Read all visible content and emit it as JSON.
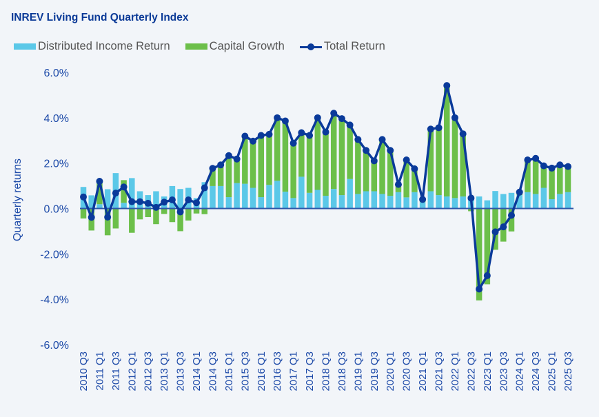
{
  "chart_data": {
    "type": "bar",
    "title": "INREV Living Fund Quarterly Index",
    "xlabel": "",
    "ylabel": "Quarterly returns",
    "ylim": [
      -6.0,
      6.0
    ],
    "yticks": [
      "6.0%",
      "4.0%",
      "2.0%",
      "0.0%",
      "-2.0%",
      "-4.0%",
      "-6.0%"
    ],
    "ytick_values": [
      6,
      4,
      2,
      0,
      -2,
      -4,
      -6
    ],
    "grid": false,
    "legend_position": "top-left",
    "colors": {
      "income": "#5bc8e8",
      "capital": "#6cbf4a",
      "total": "#0a3a9a",
      "axis_text": "#1d4aa8"
    },
    "categories": [
      "2010 Q3",
      "2010 Q4",
      "2011 Q1",
      "2011 Q2",
      "2011 Q3",
      "2011 Q4",
      "2012 Q1",
      "2012 Q2",
      "2012 Q3",
      "2012 Q4",
      "2013 Q1",
      "2013 Q2",
      "2013 Q3",
      "2013 Q4",
      "2014 Q1",
      "2014 Q2",
      "2014 Q3",
      "2014 Q4",
      "2015 Q1",
      "2015 Q2",
      "2015 Q3",
      "2015 Q4",
      "2016 Q1",
      "2016 Q2",
      "2016 Q3",
      "2016 Q4",
      "2017 Q1",
      "2017 Q2",
      "2017 Q3",
      "2017 Q4",
      "2018 Q1",
      "2018 Q2",
      "2018 Q3",
      "2018 Q4",
      "2019 Q1",
      "2019 Q2",
      "2019 Q3",
      "2019 Q4",
      "2020 Q1",
      "2020 Q2",
      "2020 Q3",
      "2020 Q4",
      "2021 Q1",
      "2021 Q2",
      "2021 Q3",
      "2021 Q4",
      "2022 Q1",
      "2022 Q2",
      "2022 Q3",
      "2022 Q4",
      "2023 Q1",
      "2023 Q2",
      "2023 Q3",
      "2023 Q4",
      "2024 Q1",
      "2024 Q2",
      "2024 Q3",
      "2024 Q4",
      "2025 Q1",
      "2025 Q2",
      "2025 Q3"
    ],
    "tick_labels_every": 2,
    "series": [
      {
        "name": "Distributed Income Return",
        "type": "bar",
        "values": [
          0.95,
          0.58,
          0.19,
          0.85,
          1.56,
          0.25,
          1.34,
          0.76,
          0.59,
          0.76,
          0.53,
          0.99,
          0.86,
          0.91,
          0.46,
          1.16,
          0.99,
          0.99,
          0.5,
          1.12,
          1.09,
          0.91,
          0.5,
          1.04,
          1.22,
          0.74,
          0.46,
          1.4,
          0.69,
          0.82,
          0.56,
          0.86,
          0.59,
          1.3,
          0.64,
          0.76,
          0.76,
          0.64,
          0.56,
          0.72,
          0.49,
          0.72,
          0.28,
          0.76,
          0.59,
          0.53,
          0.46,
          0.53,
          0.53,
          0.53,
          0.36,
          0.77,
          0.64,
          0.69,
          0.59,
          0.72,
          0.64,
          0.91,
          0.41,
          0.64,
          0.72
        ]
      },
      {
        "name": "Capital Growth",
        "type": "bar",
        "values": [
          -0.44,
          -0.97,
          1.0,
          -1.18,
          -0.88,
          1.0,
          -1.07,
          -0.48,
          -0.38,
          -0.69,
          -0.24,
          -0.6,
          -1.0,
          -0.53,
          -0.22,
          -0.25,
          0.78,
          0.93,
          1.83,
          1.06,
          2.1,
          2.06,
          2.72,
          2.23,
          2.78,
          3.12,
          2.42,
          1.94,
          2.53,
          3.18,
          2.81,
          3.34,
          3.37,
          2.38,
          2.4,
          1.8,
          1.34,
          2.4,
          2.0,
          0.34,
          1.65,
          1.03,
          0.12,
          2.74,
          2.97,
          4.89,
          3.54,
          2.76,
          -0.12,
          -4.05,
          -3.34,
          -1.82,
          -1.46,
          -1.01,
          0.13,
          1.42,
          1.57,
          0.97,
          1.37,
          1.28,
          1.13
        ]
      },
      {
        "name": "Total Return",
        "type": "line",
        "values": [
          0.51,
          -0.39,
          1.2,
          -0.38,
          0.68,
          0.95,
          0.3,
          0.3,
          0.23,
          0.05,
          0.28,
          0.38,
          -0.15,
          0.38,
          0.25,
          0.91,
          1.77,
          1.92,
          2.33,
          2.18,
          3.19,
          2.97,
          3.22,
          3.27,
          4.0,
          3.86,
          2.88,
          3.34,
          3.22,
          4.0,
          3.37,
          4.2,
          3.96,
          3.68,
          3.04,
          2.56,
          2.1,
          3.04,
          2.56,
          1.06,
          2.14,
          1.75,
          0.4,
          3.5,
          3.56,
          5.42,
          4.0,
          3.29,
          0.46,
          -3.55,
          -2.96,
          -1.03,
          -0.81,
          -0.3,
          0.72,
          2.14,
          2.21,
          1.88,
          1.78,
          1.92,
          1.85
        ]
      }
    ]
  }
}
